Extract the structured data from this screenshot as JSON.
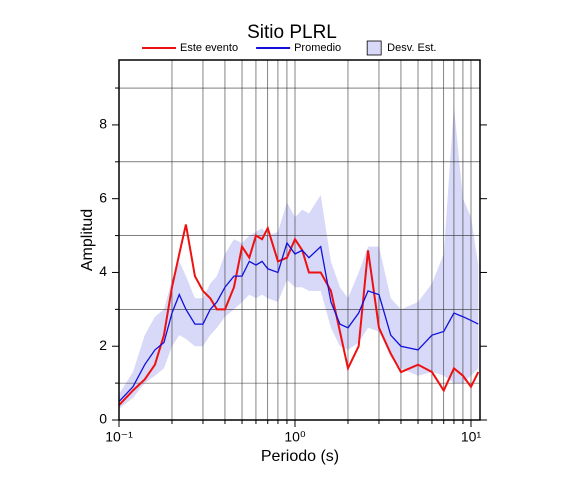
{
  "chart_data": {
    "type": "line",
    "title": "Sitio PLRL",
    "x_label": "Periodo (s)",
    "y_label": "Amplitud",
    "log_x": true,
    "grid": true,
    "legend": "top",
    "xlim": [
      0.1,
      11.25
    ],
    "ylim": [
      0,
      9.76
    ],
    "xticks": [
      {
        "value": 0.1,
        "label": "10⁻¹"
      },
      {
        "value": 1,
        "label": "10⁰"
      },
      {
        "value": 10,
        "label": "10¹"
      }
    ],
    "x_minor_ticks": [
      0.2,
      0.3,
      0.4,
      0.5,
      0.6,
      0.7,
      0.8,
      0.9,
      2,
      3,
      4,
      5,
      6,
      7,
      8,
      9
    ],
    "yticks": [
      0,
      2,
      4,
      6,
      8
    ],
    "y_minor_ticks": [
      1,
      3,
      5,
      7,
      9
    ],
    "x": [
      0.1,
      0.12,
      0.14,
      0.16,
      0.18,
      0.2,
      0.22,
      0.24,
      0.27,
      0.3,
      0.33,
      0.36,
      0.4,
      0.45,
      0.5,
      0.55,
      0.6,
      0.65,
      0.7,
      0.8,
      0.9,
      1.0,
      1.1,
      1.2,
      1.4,
      1.6,
      1.8,
      2.0,
      2.3,
      2.6,
      3.0,
      3.5,
      4,
      5,
      6,
      7,
      8,
      9,
      10,
      11
    ],
    "band": {
      "name": "Desv. Est.",
      "color": "#d8d8f8",
      "lower": [
        0.3,
        0.6,
        1.0,
        1.2,
        1.4,
        2.0,
        2.3,
        2.2,
        2.0,
        2.0,
        2.3,
        2.5,
        2.8,
        3.0,
        3.2,
        3.4,
        3.3,
        3.4,
        3.3,
        3.2,
        3.8,
        3.6,
        3.6,
        3.5,
        3.5,
        2.5,
        2.0,
        1.9,
        2.1,
        2.5,
        2.4,
        1.7,
        1.4,
        1.2,
        1.3,
        1.2,
        1.0,
        1.0,
        1.2,
        1.4
      ],
      "upper": [
        0.7,
        1.3,
        2.3,
        2.8,
        3.0,
        3.8,
        4.3,
        3.9,
        3.3,
        3.3,
        3.7,
        3.9,
        4.5,
        4.9,
        4.8,
        5.0,
        5.1,
        5.2,
        5.0,
        5.1,
        5.9,
        5.5,
        5.7,
        5.6,
        6.1,
        4.3,
        3.6,
        3.3,
        4.0,
        4.7,
        4.7,
        3.3,
        3.0,
        3.2,
        3.7,
        4.5,
        8.5,
        6.0,
        5.5,
        4.2
      ]
    },
    "series": [
      {
        "name": "Este evento",
        "color": "#ee1111",
        "values": [
          0.4,
          0.8,
          1.1,
          1.5,
          2.3,
          3.6,
          4.5,
          5.3,
          3.9,
          3.5,
          3.3,
          3.0,
          3.0,
          3.6,
          4.7,
          4.4,
          5.0,
          4.9,
          5.2,
          4.3,
          4.4,
          4.9,
          4.6,
          4.0,
          4.0,
          3.5,
          2.4,
          1.4,
          2.0,
          4.6,
          2.5,
          1.8,
          1.3,
          1.5,
          1.3,
          0.8,
          1.4,
          1.2,
          0.9,
          1.3
        ]
      },
      {
        "name": "Promedio",
        "color": "#1111dd",
        "values": [
          0.5,
          0.9,
          1.5,
          1.9,
          2.1,
          2.9,
          3.4,
          3.0,
          2.6,
          2.6,
          3.0,
          3.2,
          3.6,
          3.9,
          3.9,
          4.3,
          4.2,
          4.3,
          4.1,
          4.0,
          4.8,
          4.5,
          4.6,
          4.4,
          4.7,
          3.2,
          2.6,
          2.5,
          2.9,
          3.5,
          3.4,
          2.3,
          2.0,
          1.9,
          2.3,
          2.4,
          2.9,
          2.8,
          2.7,
          2.6
        ]
      }
    ]
  }
}
